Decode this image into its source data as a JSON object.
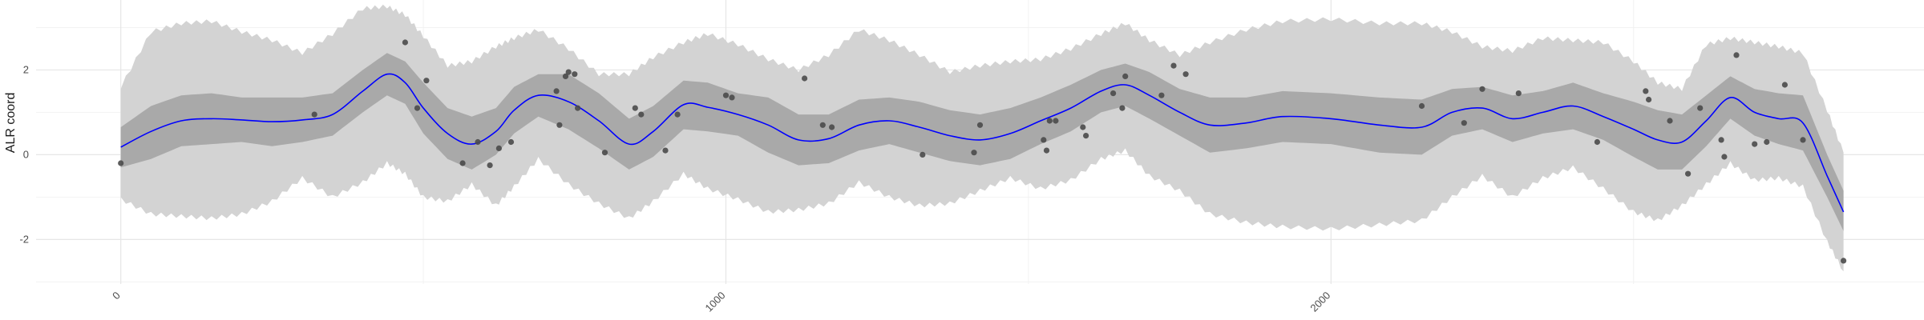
{
  "chart_data": {
    "type": "line",
    "title": "",
    "xlabel": "",
    "ylabel": "ALR coord",
    "xlim": [
      -140,
      2980
    ],
    "ylim": [
      -3.05,
      3.65
    ],
    "x_ticks": [
      0,
      1000,
      2000
    ],
    "x_tick_labels": [
      "0",
      "1000",
      "2000"
    ],
    "y_ticks": [
      -2,
      0,
      2
    ],
    "y_tick_labels": [
      "-2",
      "0",
      "2"
    ],
    "grid": true,
    "legend": "none",
    "colors": {
      "mean_line": "#0000ff",
      "inner_band": "#a9a9a9",
      "outer_band": "#d3d3d3",
      "points": "#4a4a4a",
      "grid_major": "#e6e6e6",
      "grid_minor": "#f2f2f2"
    },
    "mean_line": {
      "x": [
        0,
        50,
        100,
        150,
        200,
        250,
        300,
        350,
        400,
        440,
        470,
        500,
        540,
        580,
        620,
        650,
        690,
        740,
        790,
        840,
        880,
        930,
        970,
        1020,
        1070,
        1120,
        1170,
        1220,
        1270,
        1320,
        1370,
        1420,
        1470,
        1520,
        1570,
        1620,
        1660,
        1700,
        1750,
        1800,
        1860,
        1920,
        2000,
        2080,
        2150,
        2200,
        2250,
        2300,
        2350,
        2400,
        2450,
        2500,
        2540,
        2580,
        2620,
        2660,
        2700,
        2740,
        2780,
        2820,
        2847
      ],
      "y": [
        0.18,
        0.55,
        0.8,
        0.85,
        0.82,
        0.78,
        0.82,
        0.95,
        1.5,
        1.9,
        1.7,
        1.1,
        0.5,
        0.25,
        0.55,
        1.05,
        1.4,
        1.25,
        0.8,
        0.25,
        0.55,
        1.18,
        1.12,
        0.95,
        0.7,
        0.35,
        0.38,
        0.7,
        0.8,
        0.65,
        0.45,
        0.35,
        0.5,
        0.8,
        1.1,
        1.5,
        1.65,
        1.4,
        1.0,
        0.7,
        0.75,
        0.9,
        0.85,
        0.7,
        0.65,
        1.0,
        1.1,
        0.85,
        1.0,
        1.15,
        0.9,
        0.6,
        0.35,
        0.3,
        0.8,
        1.35,
        1.0,
        0.85,
        0.75,
        -0.5,
        -1.35
      ]
    },
    "inner_band": {
      "x": [
        0,
        50,
        100,
        150,
        200,
        250,
        300,
        350,
        400,
        440,
        470,
        500,
        540,
        580,
        620,
        650,
        690,
        740,
        790,
        840,
        880,
        930,
        970,
        1020,
        1070,
        1120,
        1170,
        1220,
        1270,
        1320,
        1370,
        1420,
        1470,
        1520,
        1570,
        1620,
        1660,
        1700,
        1750,
        1800,
        1860,
        1920,
        2000,
        2080,
        2150,
        2200,
        2250,
        2300,
        2350,
        2400,
        2450,
        2500,
        2540,
        2580,
        2620,
        2660,
        2700,
        2740,
        2780,
        2820,
        2847
      ],
      "lower": [
        -0.3,
        -0.1,
        0.2,
        0.25,
        0.3,
        0.2,
        0.3,
        0.45,
        1.0,
        1.4,
        1.2,
        0.5,
        -0.1,
        -0.35,
        0.0,
        0.5,
        0.9,
        0.6,
        0.15,
        -0.35,
        -0.05,
        0.6,
        0.55,
        0.45,
        0.05,
        -0.25,
        -0.2,
        0.1,
        0.25,
        0.05,
        -0.15,
        -0.25,
        -0.1,
        0.25,
        0.55,
        1.0,
        1.15,
        0.85,
        0.45,
        0.05,
        0.15,
        0.3,
        0.25,
        0.05,
        0.0,
        0.45,
        0.6,
        0.3,
        0.5,
        0.6,
        0.35,
        -0.05,
        -0.35,
        -0.35,
        0.2,
        0.85,
        0.45,
        0.25,
        0.1,
        -1.0,
        -1.8
      ],
      "upper": [
        0.65,
        1.15,
        1.4,
        1.45,
        1.35,
        1.35,
        1.35,
        1.45,
        2.0,
        2.4,
        2.2,
        1.7,
        1.1,
        0.9,
        1.1,
        1.6,
        1.9,
        1.9,
        1.45,
        0.85,
        1.15,
        1.75,
        1.7,
        1.45,
        1.35,
        0.95,
        0.95,
        1.3,
        1.35,
        1.25,
        1.05,
        0.95,
        1.1,
        1.35,
        1.65,
        2.0,
        2.15,
        1.95,
        1.55,
        1.35,
        1.35,
        1.5,
        1.45,
        1.35,
        1.3,
        1.55,
        1.6,
        1.4,
        1.5,
        1.7,
        1.45,
        1.25,
        1.05,
        0.95,
        1.4,
        1.85,
        1.55,
        1.45,
        1.4,
        0.0,
        -0.85
      ]
    },
    "outer_band": {
      "x": [
        0,
        50,
        100,
        150,
        200,
        250,
        300,
        350,
        400,
        440,
        470,
        500,
        540,
        580,
        620,
        650,
        690,
        740,
        790,
        840,
        880,
        930,
        970,
        1020,
        1070,
        1120,
        1170,
        1220,
        1270,
        1320,
        1370,
        1420,
        1470,
        1520,
        1570,
        1620,
        1660,
        1700,
        1750,
        1800,
        1860,
        1920,
        2000,
        2080,
        2150,
        2200,
        2250,
        2300,
        2350,
        2400,
        2450,
        2500,
        2540,
        2580,
        2620,
        2660,
        2700,
        2740,
        2780,
        2820,
        2847
      ],
      "lower": [
        -1.05,
        -1.4,
        -1.45,
        -1.5,
        -1.4,
        -1.1,
        -0.55,
        -1.0,
        -0.65,
        -0.2,
        -0.45,
        -1.0,
        -1.1,
        -0.7,
        -1.2,
        -0.75,
        -0.1,
        -0.7,
        -1.15,
        -1.5,
        -1.1,
        -0.45,
        -0.8,
        -1.05,
        -1.35,
        -1.3,
        -1.15,
        -0.65,
        -1.0,
        -1.2,
        -1.15,
        -0.85,
        -0.55,
        -0.8,
        -0.6,
        -0.1,
        0.1,
        -0.5,
        -0.85,
        -1.4,
        -1.6,
        -1.7,
        -1.75,
        -1.65,
        -1.55,
        -1.0,
        -0.5,
        -1.0,
        -0.55,
        -0.3,
        -0.8,
        -1.35,
        -1.55,
        -1.2,
        -0.7,
        -0.2,
        -0.6,
        -0.55,
        -0.75,
        -2.05,
        -2.75
      ],
      "upper": [
        1.6,
        2.9,
        3.1,
        3.15,
        2.9,
        2.7,
        2.4,
        2.85,
        3.45,
        3.5,
        3.3,
        2.8,
        2.1,
        2.2,
        2.55,
        2.75,
        2.95,
        2.5,
        1.9,
        1.9,
        2.3,
        2.65,
        2.85,
        2.6,
        2.25,
        2.0,
        2.35,
        2.95,
        2.7,
        2.35,
        1.95,
        2.1,
        2.2,
        2.25,
        2.5,
        2.85,
        3.1,
        2.7,
        2.35,
        2.65,
        2.95,
        3.15,
        3.2,
        3.1,
        3.1,
        2.9,
        2.55,
        2.45,
        2.75,
        2.7,
        2.65,
        2.2,
        1.7,
        1.55,
        2.6,
        2.75,
        2.65,
        2.55,
        2.4,
        1.05,
        0.05
      ]
    },
    "points": {
      "x": [
        0,
        320,
        470,
        490,
        505,
        565,
        590,
        610,
        625,
        645,
        720,
        725,
        735,
        740,
        750,
        755,
        800,
        850,
        860,
        900,
        920,
        1000,
        1010,
        1130,
        1160,
        1175,
        1325,
        1410,
        1420,
        1525,
        1530,
        1535,
        1545,
        1590,
        1595,
        1640,
        1655,
        1660,
        1720,
        1740,
        1760,
        2150,
        2220,
        2250,
        2310,
        2440,
        2520,
        2525,
        2560,
        2590,
        2610,
        2645,
        2650,
        2670,
        2700
      ],
      "y": [
        -0.2,
        0.95,
        2.65,
        1.1,
        1.75,
        -0.2,
        0.3,
        -0.25,
        0.15,
        0.3,
        1.5,
        0.7,
        1.85,
        1.95,
        1.9,
        1.1,
        0.05,
        1.1,
        0.95,
        0.1,
        0.95,
        1.4,
        1.35,
        1.8,
        0.7,
        0.65,
        0.0,
        0.05,
        0.7,
        0.35,
        0.1,
        0.8,
        0.8,
        0.65,
        0.45,
        1.45,
        1.1,
        1.85,
        1.4,
        2.1,
        1.9,
        1.15,
        0.75,
        1.55,
        1.45,
        0.3,
        1.5,
        1.3,
        0.8,
        -0.45,
        1.1,
        0.35,
        -0.05,
        2.35,
        0.25
      ]
    },
    "extra_points": [
      {
        "x": 2720,
        "y": 0.3
      },
      {
        "x": 2750,
        "y": 1.65
      },
      {
        "x": 2780,
        "y": 0.35
      },
      {
        "x": 2847,
        "y": -2.5
      }
    ]
  }
}
